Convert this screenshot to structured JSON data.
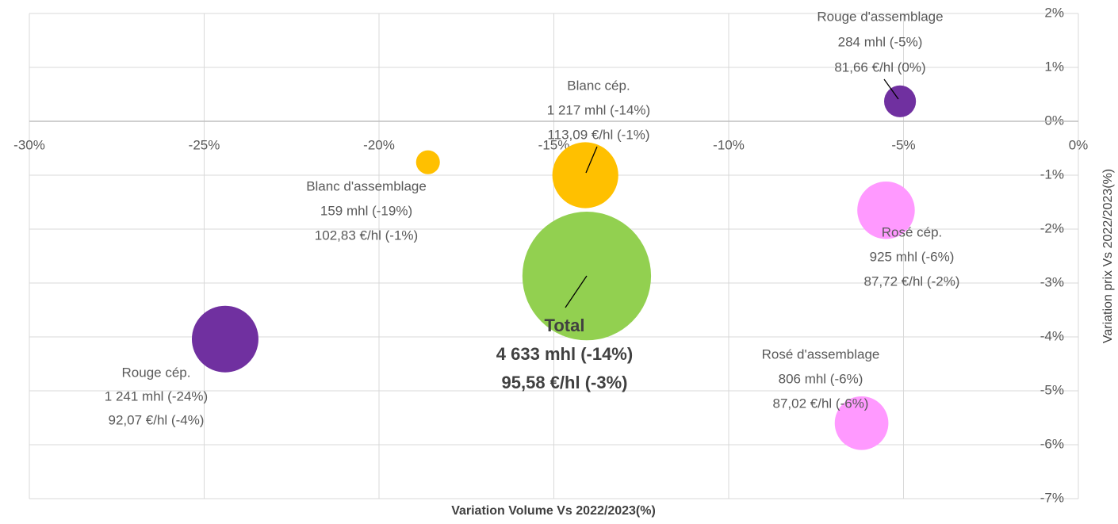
{
  "chart_data": {
    "type": "bubble",
    "xlabel": "Variation Volume Vs 2022/2023(%)",
    "ylabel": "Variation prix Vs 2022/2023(%)",
    "xlim": [
      -30,
      0
    ],
    "xticks": [
      {
        "value": -30,
        "label": "-30%"
      },
      {
        "value": -25,
        "label": "-25%"
      },
      {
        "value": -20,
        "label": "-20%"
      },
      {
        "value": -15,
        "label": "-15%"
      },
      {
        "value": -10,
        "label": "-10%"
      },
      {
        "value": -5,
        "label": "-5%"
      },
      {
        "value": 0,
        "label": "0%"
      }
    ],
    "ylim": [
      -7,
      2
    ],
    "yticks": [
      {
        "value": -7,
        "label": "-7%"
      },
      {
        "value": -6,
        "label": "-6%"
      },
      {
        "value": -5,
        "label": "-5%"
      },
      {
        "value": -4,
        "label": "-4%"
      },
      {
        "value": -3,
        "label": "-3%"
      },
      {
        "value": -2,
        "label": "-2%"
      },
      {
        "value": -1,
        "label": "-1%"
      },
      {
        "value": 0,
        "label": "0%"
      },
      {
        "value": 1,
        "label": "1%"
      },
      {
        "value": 2,
        "label": "2%"
      }
    ],
    "grid": true,
    "series": [
      {
        "name": "Rouge d'assemblage",
        "color": "#7030a0",
        "x": [
          -5.1
        ],
        "values": [
          0.37
        ],
        "sizes": [
          284
        ],
        "labels": [
          "284 mhl (-5%)",
          "81,66 €/hl (0%)"
        ]
      },
      {
        "name": "Blanc cép.",
        "color": "#ffc000",
        "x": [
          -14.1
        ],
        "values": [
          -1.0
        ],
        "sizes": [
          1217
        ],
        "labels": [
          "1 217 mhl (-14%)",
          "113,09 €/hl (-1%)"
        ]
      },
      {
        "name": "Blanc d'assemblage",
        "color": "#ffc000",
        "x": [
          -18.6
        ],
        "values": [
          -0.76
        ],
        "sizes": [
          159
        ],
        "labels": [
          "159 mhl (-19%)",
          "102,83 €/hl (-1%)"
        ]
      },
      {
        "name": "Rosé cép.",
        "color": "#ff99ff",
        "x": [
          -5.5
        ],
        "values": [
          -1.65
        ],
        "sizes": [
          925
        ],
        "labels": [
          "925 mhl (-6%)",
          "87,72 €/hl (-2%)"
        ]
      },
      {
        "name": "Total",
        "color": "#92d050",
        "x": [
          -14.06
        ],
        "values": [
          -2.87
        ],
        "sizes": [
          4633
        ],
        "labels": [
          "4 633 mhl (-14%)",
          "95,58 €/hl (-3%)"
        ]
      },
      {
        "name": "Rouge cép.",
        "color": "#7030a0",
        "x": [
          -24.4
        ],
        "values": [
          -4.04
        ],
        "sizes": [
          1241
        ],
        "labels": [
          "1 241 mhl (-24%)",
          "92,07 €/hl (-4%)"
        ]
      },
      {
        "name": "Rosé d'assemblage",
        "color": "#ff99ff",
        "x": [
          -6.2
        ],
        "values": [
          -5.6
        ],
        "sizes": [
          806
        ],
        "labels": [
          "806 mhl (-6%)",
          "87,02 €/hl (-6%)"
        ]
      }
    ]
  }
}
